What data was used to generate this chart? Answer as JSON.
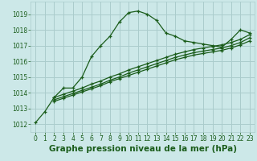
{
  "title": "Graphe pression niveau de la mer (hPa)",
  "bg_color": "#cce8e8",
  "grid_color": "#aacccc",
  "line_color": "#1a5c1a",
  "xlim": [
    -0.5,
    23.5
  ],
  "ylim": [
    1011.5,
    1019.8
  ],
  "xticks": [
    0,
    1,
    2,
    3,
    4,
    5,
    6,
    7,
    8,
    9,
    10,
    11,
    12,
    13,
    14,
    15,
    16,
    17,
    18,
    19,
    20,
    21,
    22,
    23
  ],
  "yticks": [
    1012,
    1013,
    1014,
    1015,
    1016,
    1017,
    1018,
    1019
  ],
  "series": [
    {
      "x": [
        0,
        1,
        2,
        3,
        4,
        5,
        6,
        7,
        8,
        9,
        10,
        11,
        12,
        13,
        14,
        15,
        16,
        17,
        18,
        19,
        20,
        21,
        22,
        23
      ],
      "y": [
        1012.1,
        1012.8,
        1013.7,
        1014.3,
        1014.3,
        1015.0,
        1016.3,
        1017.0,
        1017.6,
        1018.5,
        1019.1,
        1019.2,
        1019.0,
        1018.6,
        1017.8,
        1017.6,
        1017.3,
        1017.2,
        1017.1,
        1017.0,
        1016.9,
        1017.4,
        1018.0,
        1017.8
      ]
    },
    {
      "x": [
        2,
        3,
        4,
        5,
        6,
        7,
        8,
        9,
        10,
        11,
        12,
        13,
        14,
        15,
        16,
        17,
        18,
        19,
        20,
        21,
        22,
        23
      ],
      "y": [
        1013.7,
        1013.9,
        1014.1,
        1014.3,
        1014.55,
        1014.75,
        1015.0,
        1015.2,
        1015.45,
        1015.65,
        1015.85,
        1016.05,
        1016.25,
        1016.45,
        1016.6,
        1016.75,
        1016.85,
        1016.95,
        1017.05,
        1017.2,
        1017.4,
        1017.7
      ]
    },
    {
      "x": [
        2,
        3,
        4,
        5,
        6,
        7,
        8,
        9,
        10,
        11,
        12,
        13,
        14,
        15,
        16,
        17,
        18,
        19,
        20,
        21,
        22,
        23
      ],
      "y": [
        1013.55,
        1013.75,
        1013.95,
        1014.15,
        1014.35,
        1014.55,
        1014.8,
        1015.0,
        1015.25,
        1015.45,
        1015.65,
        1015.85,
        1016.05,
        1016.25,
        1016.4,
        1016.55,
        1016.65,
        1016.75,
        1016.85,
        1017.0,
        1017.2,
        1017.5
      ]
    },
    {
      "x": [
        2,
        3,
        4,
        5,
        6,
        7,
        8,
        9,
        10,
        11,
        12,
        13,
        14,
        15,
        16,
        17,
        18,
        19,
        20,
        21,
        22,
        23
      ],
      "y": [
        1013.45,
        1013.65,
        1013.85,
        1014.05,
        1014.25,
        1014.45,
        1014.7,
        1014.9,
        1015.1,
        1015.3,
        1015.5,
        1015.7,
        1015.9,
        1016.1,
        1016.25,
        1016.4,
        1016.5,
        1016.6,
        1016.7,
        1016.85,
        1017.05,
        1017.3
      ]
    }
  ],
  "marker": "+",
  "markersize": 3.5,
  "linewidth": 0.9,
  "title_fontsize": 7.5,
  "tick_fontsize": 5.5
}
